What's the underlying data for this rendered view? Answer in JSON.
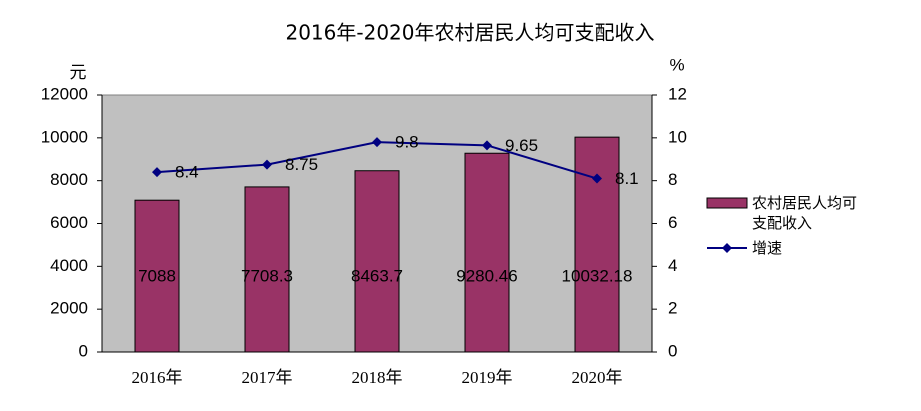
{
  "chart_data": {
    "type": "bar",
    "title": "2016年-2020年农村居民人均可支配收入",
    "y_unit": "元",
    "y2_unit": "%",
    "categories": [
      "2016年",
      "2017年",
      "2018年",
      "2019年",
      "2020年"
    ],
    "series": [
      {
        "name": "农村居民人均可支配收入",
        "type": "bar",
        "color": "#993366",
        "values": [
          7088,
          7708.3,
          8463.7,
          9280.46,
          10032.18
        ]
      },
      {
        "name": "增速",
        "type": "line",
        "axis": "y2",
        "color": "#000080",
        "values": [
          8.4,
          8.75,
          9.8,
          9.65,
          8.1
        ]
      }
    ],
    "ylim": [
      0,
      12000
    ],
    "yticks": [
      0,
      2000,
      4000,
      6000,
      8000,
      10000,
      12000
    ],
    "y2lim": [
      0,
      12
    ],
    "y2ticks": [
      0,
      2,
      4,
      6,
      8,
      10,
      12
    ],
    "plot_background": "#C0C0C0"
  }
}
